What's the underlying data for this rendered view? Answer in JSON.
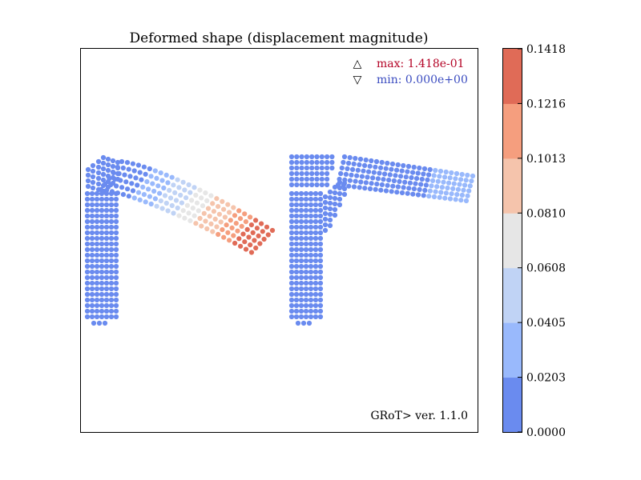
{
  "chart_data": {
    "type": "scatter",
    "title": "Deformed shape (displacement magnitude)",
    "xlabel": "",
    "ylabel": "",
    "grid": false,
    "axes_ticks": false,
    "max_label": "max: 1.418e-01",
    "min_label": "min: 0.000e+00",
    "max_marker": "△",
    "min_marker": "▽",
    "footer": "GRoT> ver. 1.1.0",
    "colorbar": {
      "min": 0.0,
      "max": 0.1418,
      "ticks": [
        "0.0000",
        "0.0203",
        "0.0405",
        "0.0608",
        "0.0810",
        "0.1013",
        "0.1216",
        "0.1418"
      ],
      "colors": [
        "#6a8bef",
        "#99b9fc",
        "#c0d3f5",
        "#e6e6e6",
        "#f5c4ac",
        "#f59e7e",
        "#e06b57"
      ]
    },
    "colors": {
      "max_label": "#b40426",
      "min_label": "#3b4cc0"
    },
    "series": [
      {
        "shape": "left-frame",
        "displacement_range": [
          0.0,
          0.1418
        ]
      },
      {
        "shape": "right-frame",
        "displacement_range": [
          0.0,
          0.04
        ]
      }
    ]
  }
}
